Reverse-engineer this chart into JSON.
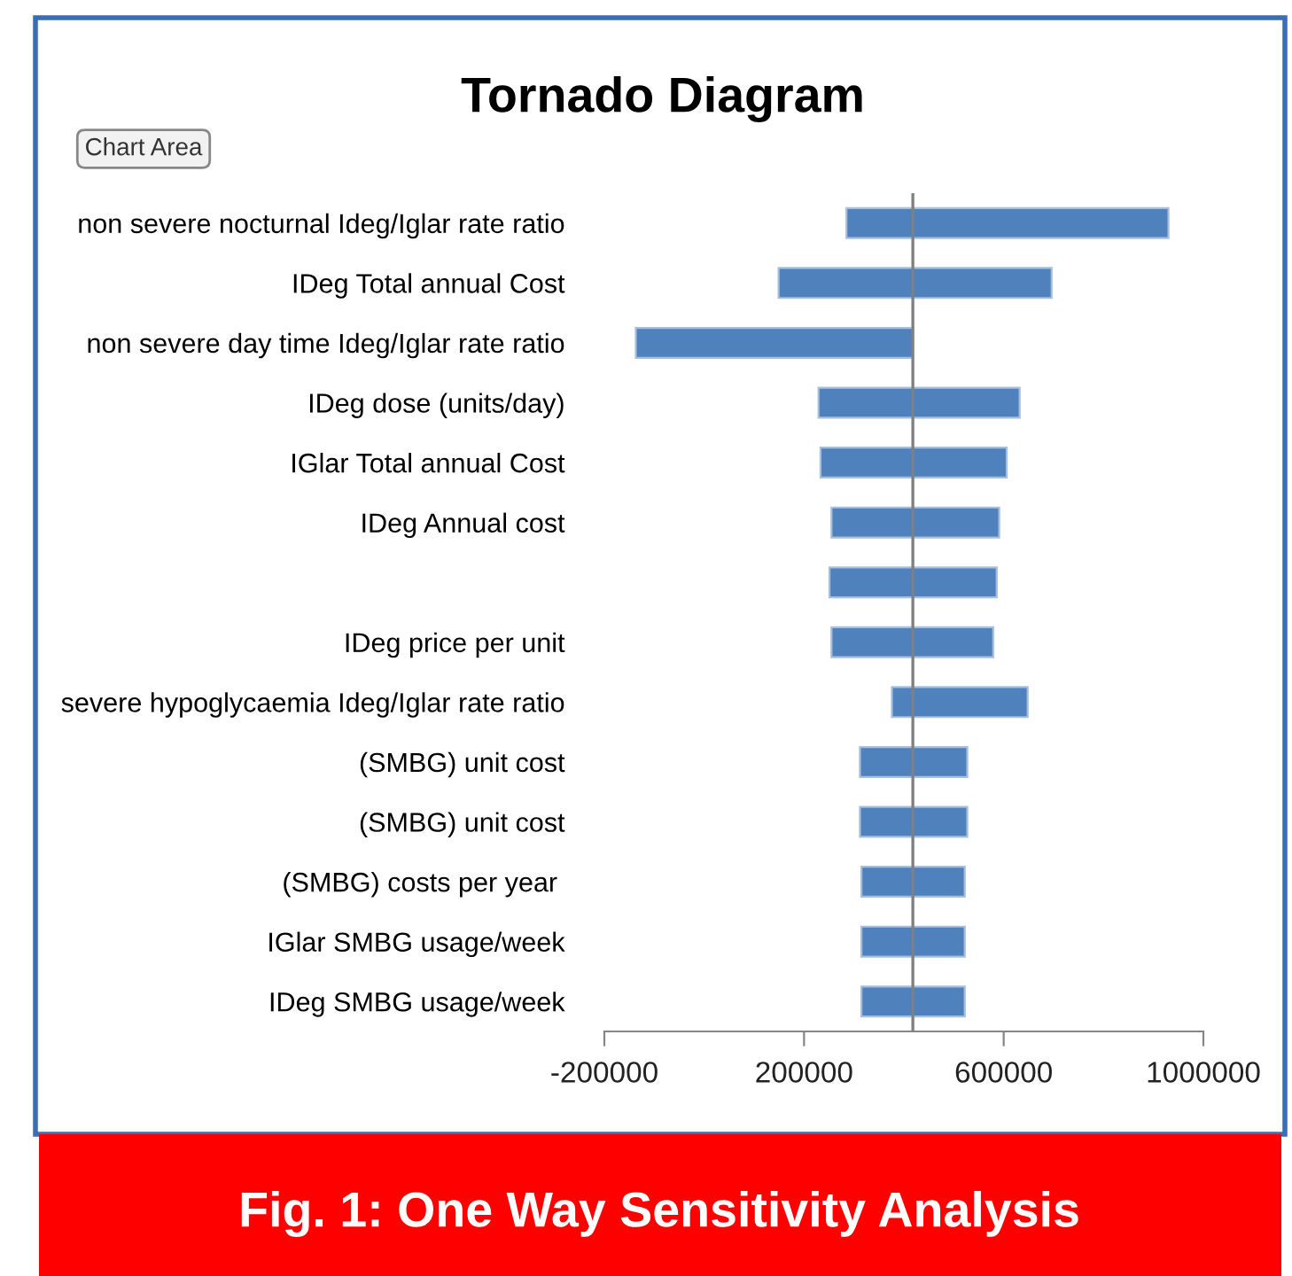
{
  "chart_data": {
    "type": "bar",
    "orientation": "horizontal",
    "title": "Tornado Diagram",
    "categories": [
      "non severe nocturnal Ideg/Iglar rate ratio",
      "IDeg Total annual Cost",
      "non severe day time Ideg/Iglar rate ratio",
      "IDeg dose (units/day)",
      "IGlar Total annual Cost",
      "IDeg Annual cost",
      null,
      "IDeg price per unit",
      "severe hypoglycaemia Ideg/Iglar rate ratio",
      "(SMBG) unit cost",
      "(SMBG) unit cost",
      "(SMBG) costs per year ",
      "IGlar SMBG usage/week",
      "IDeg SMBG usage/week"
    ],
    "base": [
      285000,
      149000,
      -137000,
      229000,
      233000,
      255000,
      251000,
      255000,
      376000,
      312000,
      312000,
      315000,
      315000,
      315000
    ],
    "values": [
      645000,
      547000,
      555000,
      403000,
      373000,
      336000,
      335000,
      324000,
      272000,
      215000,
      215000,
      207000,
      207000,
      207000
    ],
    "color": "#4f81bd",
    "xlim": [
      -200000,
      1000000
    ],
    "xticks": [
      -200000,
      200000,
      600000,
      1000000
    ],
    "ref_lines": [
      {
        "axis": "x",
        "value": 418000,
        "color": "#808080"
      }
    ],
    "grid": false,
    "legend": false,
    "annotations": [
      "Chart Area",
      "Fig. 1: One Way Sensitivity Analysis"
    ]
  }
}
